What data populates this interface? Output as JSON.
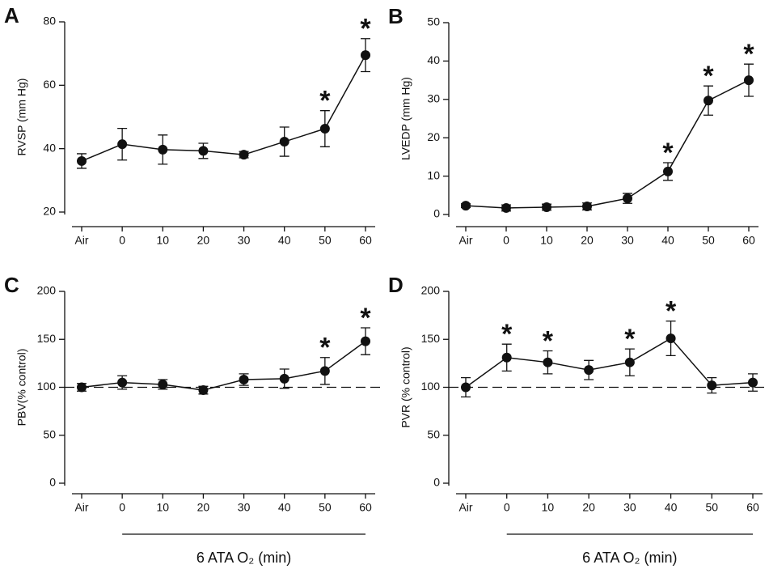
{
  "chart_data": [
    {
      "type": "line",
      "panel_label": "A",
      "ylabel": "RVSP  (mm Hg)",
      "categories": [
        "Air",
        "0",
        "10",
        "20",
        "30",
        "40",
        "50",
        "60"
      ],
      "series": [
        {
          "color": "#111111",
          "values": [
            36.1,
            41.4,
            39.7,
            39.3,
            38.1,
            42.2,
            46.3,
            69.5
          ],
          "errors": [
            2.3,
            5,
            4.6,
            2.4,
            1,
            4.6,
            5.7,
            5.2
          ]
        }
      ],
      "ylim": [
        20,
        80
      ],
      "yticks": [
        20,
        40,
        60,
        80
      ],
      "annotations": [
        {
          "text": "*",
          "category": "50"
        },
        {
          "text": "*",
          "category": "60"
        }
      ]
    },
    {
      "type": "line",
      "panel_label": "B",
      "ylabel": "LVEDP (mm Hg)",
      "categories": [
        "Air",
        "0",
        "10",
        "20",
        "30",
        "40",
        "50",
        "60"
      ],
      "series": [
        {
          "color": "#111111",
          "values": [
            2.3,
            1.7,
            1.9,
            2.1,
            4.2,
            11.2,
            29.7,
            35.0
          ],
          "errors": [
            0.5,
            0.8,
            0.8,
            0.9,
            1.3,
            2.3,
            3.8,
            4.2
          ]
        }
      ],
      "ylim": [
        0,
        50
      ],
      "yticks": [
        0,
        10,
        20,
        30,
        40,
        50
      ],
      "annotations": [
        {
          "text": "*",
          "category": "40"
        },
        {
          "text": "*",
          "category": "50"
        },
        {
          "text": "*",
          "category": "60"
        }
      ]
    },
    {
      "type": "line",
      "panel_label": "C",
      "ylabel": "PBV(% control)",
      "xlabel": "6 ATA O₂ (min)",
      "categories": [
        "Air",
        "0",
        "10",
        "20",
        "30",
        "40",
        "50",
        "60"
      ],
      "series": [
        {
          "color": "#111111",
          "values": [
            100,
            105,
            103,
            97,
            108,
            109,
            117,
            148
          ],
          "errors": [
            4,
            7,
            5,
            4,
            6,
            10,
            14,
            14
          ]
        }
      ],
      "ylim": [
        0,
        200
      ],
      "yticks": [
        0,
        50,
        100,
        150,
        200
      ],
      "reference_line": 100,
      "annotations": [
        {
          "text": "*",
          "category": "50"
        },
        {
          "text": "*",
          "category": "60"
        }
      ]
    },
    {
      "type": "line",
      "panel_label": "D",
      "ylabel": "PVR (% control)",
      "xlabel": "6 ATA O₂ (min)",
      "categories": [
        "Air",
        "0",
        "10",
        "20",
        "30",
        "40",
        "50",
        "60"
      ],
      "series": [
        {
          "color": "#111111",
          "values": [
            100,
            131,
            126,
            118,
            126,
            151,
            102,
            105
          ],
          "errors": [
            10,
            14,
            12,
            10,
            14,
            18,
            8,
            9
          ]
        }
      ],
      "ylim": [
        0,
        200
      ],
      "yticks": [
        0,
        50,
        100,
        150,
        200
      ],
      "reference_line": 100,
      "annotations": [
        {
          "text": "*",
          "category": "0"
        },
        {
          "text": "*",
          "category": "10"
        },
        {
          "text": "*",
          "category": "30"
        },
        {
          "text": "*",
          "category": "40"
        }
      ]
    }
  ]
}
